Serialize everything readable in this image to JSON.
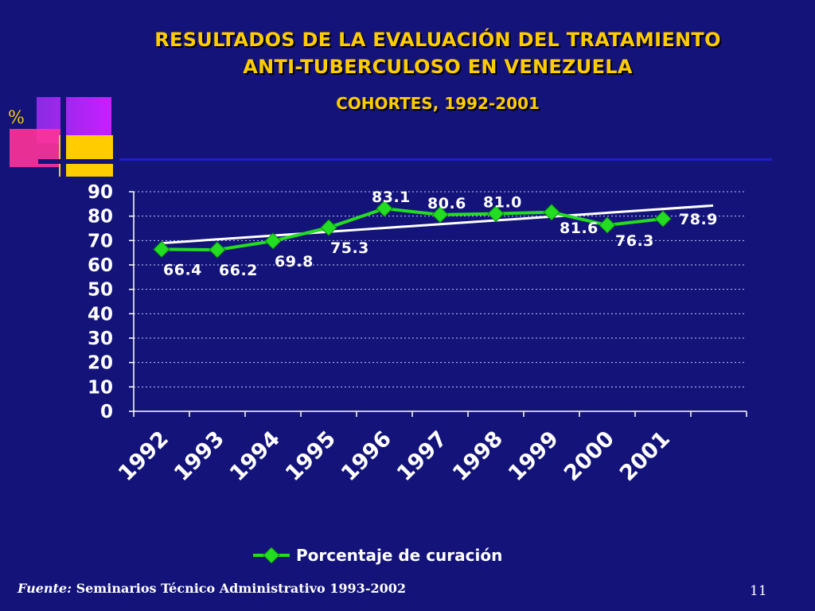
{
  "slide": {
    "title_line1": "RESULTADOS DE LA EVALUACIÓN DEL TRATAMIENTO",
    "title_line2": "ANTI-TUBERCULOSO EN VENEZUELA",
    "subtitle": "COHORTES, 1992-2001",
    "percent_sign": "%",
    "source_label": "Fuente:",
    "source_text": " Seminarios Técnico Administrativo 1993-2002",
    "page_number": "11"
  },
  "colors": {
    "background": "#13137a",
    "title": "#ffcc00",
    "series": "#22dd22",
    "trend": "#ffffff",
    "text": "#ffffff"
  },
  "chart_data": {
    "type": "line",
    "categories": [
      "1992",
      "1993",
      "1994",
      "1995",
      "1996",
      "1997",
      "1998",
      "1999",
      "2000",
      "2001"
    ],
    "series": [
      {
        "name": "Porcentaje de curación",
        "values": [
          66.4,
          66.2,
          69.8,
          75.3,
          83.1,
          80.6,
          81.0,
          81.6,
          76.3,
          78.9
        ],
        "labels": [
          "66.4",
          "66.2",
          "69.8",
          "75.3",
          "83.1",
          "80.6",
          "81.0",
          "81.6",
          "76.3",
          "78.9"
        ]
      }
    ],
    "trendline": true,
    "y_ticks": [
      "0",
      "10",
      "20",
      "30",
      "40",
      "50",
      "60",
      "70",
      "80",
      "90"
    ],
    "ylim": [
      0,
      90
    ],
    "grid": "horizontal-dashed",
    "legend": "bottom"
  }
}
